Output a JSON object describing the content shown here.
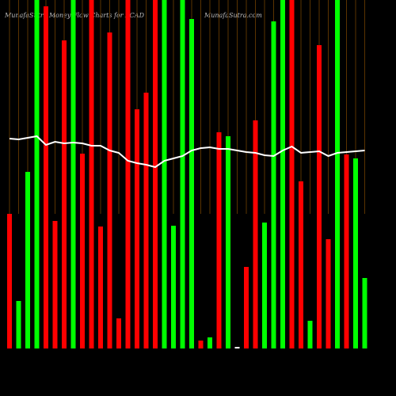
{
  "chart_data": {
    "type": "bar",
    "title": "MunafaSutra Money Flow Charts for XCAD",
    "subtitle": "MunafaSutra.com",
    "categories": [
      null,
      null,
      null,
      null,
      null,
      null,
      null,
      null,
      null,
      null,
      null,
      null,
      null,
      null,
      null,
      null,
      null,
      null,
      null,
      null,
      null,
      null,
      null,
      null,
      null,
      null,
      null,
      null,
      null,
      null,
      null,
      null,
      null,
      null,
      null,
      null,
      null,
      null,
      null,
      null
    ],
    "values": [
      170,
      60,
      223,
      440,
      432,
      161,
      389,
      440,
      246,
      440,
      154,
      399,
      38,
      440,
      302,
      323,
      440,
      440,
      155,
      440,
      416,
      10,
      14,
      273,
      268,
      2,
      103,
      288,
      159,
      413,
      440,
      440,
      211,
      35,
      383,
      138,
      440,
      245,
      240,
      89
    ],
    "colors": [
      "#ff0000",
      "#00ff00",
      "#00ff00",
      "#00ff00",
      "#ff0000",
      "#ff0000",
      "#ff0000",
      "#00ff00",
      "#ff0000",
      "#ff0000",
      "#ff0000",
      "#ff0000",
      "#ff0000",
      "#ff0000",
      "#ff0000",
      "#ff0000",
      "#ff0000",
      "#00ff00",
      "#00ff00",
      "#00ff00",
      "#00ff00",
      "#ff0000",
      "#00ff00",
      "#ff0000",
      "#00ff00",
      "#ffffff",
      "#ff0000",
      "#ff0000",
      "#00ff00",
      "#00ff00",
      "#00ff00",
      "#ff0000",
      "#ff0000",
      "#00ff00",
      "#ff0000",
      "#ff0000",
      "#00ff00",
      "#ff0000",
      "#00ff00",
      "#00ff00"
    ],
    "line": {
      "color": "#ffffff",
      "values": [
        265,
        264,
        266,
        268,
        257,
        261,
        259,
        260,
        259,
        256,
        256,
        250,
        247,
        237,
        234,
        232,
        229,
        237,
        240,
        243,
        250,
        253,
        254,
        252,
        252,
        250,
        248,
        247,
        244,
        243,
        250,
        255,
        247,
        248,
        249,
        243,
        247,
        248,
        249,
        250
      ]
    },
    "ylim": [
      0,
      440
    ]
  }
}
